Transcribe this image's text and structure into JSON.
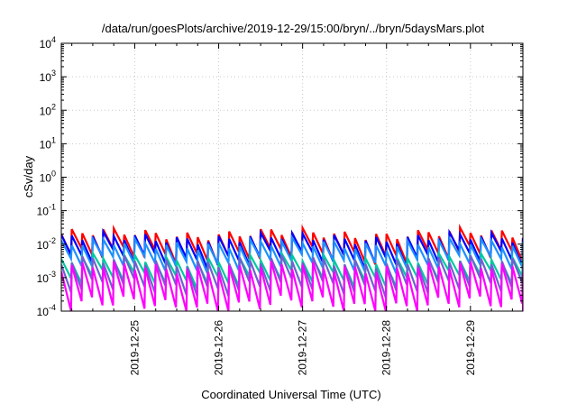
{
  "chart_data": {
    "type": "line",
    "title": "/data/run/goesPlots/archive/2019-12-29/15:00/bryn/../bryn/5daysMars.plot",
    "xlabel": "Coordinated Universal Time (UTC)",
    "ylabel": "cSv/day",
    "yscale": "log",
    "ylim": [
      0.0001,
      10000
    ],
    "xlim": [
      "2019-12-24T03:00",
      "2019-12-29T15:00"
    ],
    "x_ticks": [
      "2019-12-25",
      "2019-12-26",
      "2019-12-27",
      "2019-12-28",
      "2019-12-29"
    ],
    "y_ticks": [
      {
        "base": "10",
        "exp": "-4"
      },
      {
        "base": "10",
        "exp": "-3"
      },
      {
        "base": "10",
        "exp": "-2"
      },
      {
        "base": "10",
        "exp": "-1"
      },
      {
        "base": "10",
        "exp": "0"
      },
      {
        "base": "10",
        "exp": "1"
      },
      {
        "base": "10",
        "exp": "2"
      },
      {
        "base": "10",
        "exp": "3"
      },
      {
        "base": "10",
        "exp": "4"
      }
    ],
    "grid": true,
    "legend": "none",
    "sawtooth_period_hours": 3,
    "series": [
      {
        "color": "#ff0000",
        "peak": 0.02,
        "trough": 0.0045
      },
      {
        "color": "#0000ff",
        "peak": 0.015,
        "trough": 0.0035
      },
      {
        "color": "#1e90ff",
        "peak": 0.01,
        "trough": 0.0025
      },
      {
        "color": "#00c8a0",
        "peak": 0.0035,
        "trough": 0.0009
      },
      {
        "color": "#7060d0",
        "peak": 0.003,
        "trough": 0.0005
      },
      {
        "color": "#ff00ff",
        "peak": 0.002,
        "trough": 0.00015
      }
    ]
  }
}
